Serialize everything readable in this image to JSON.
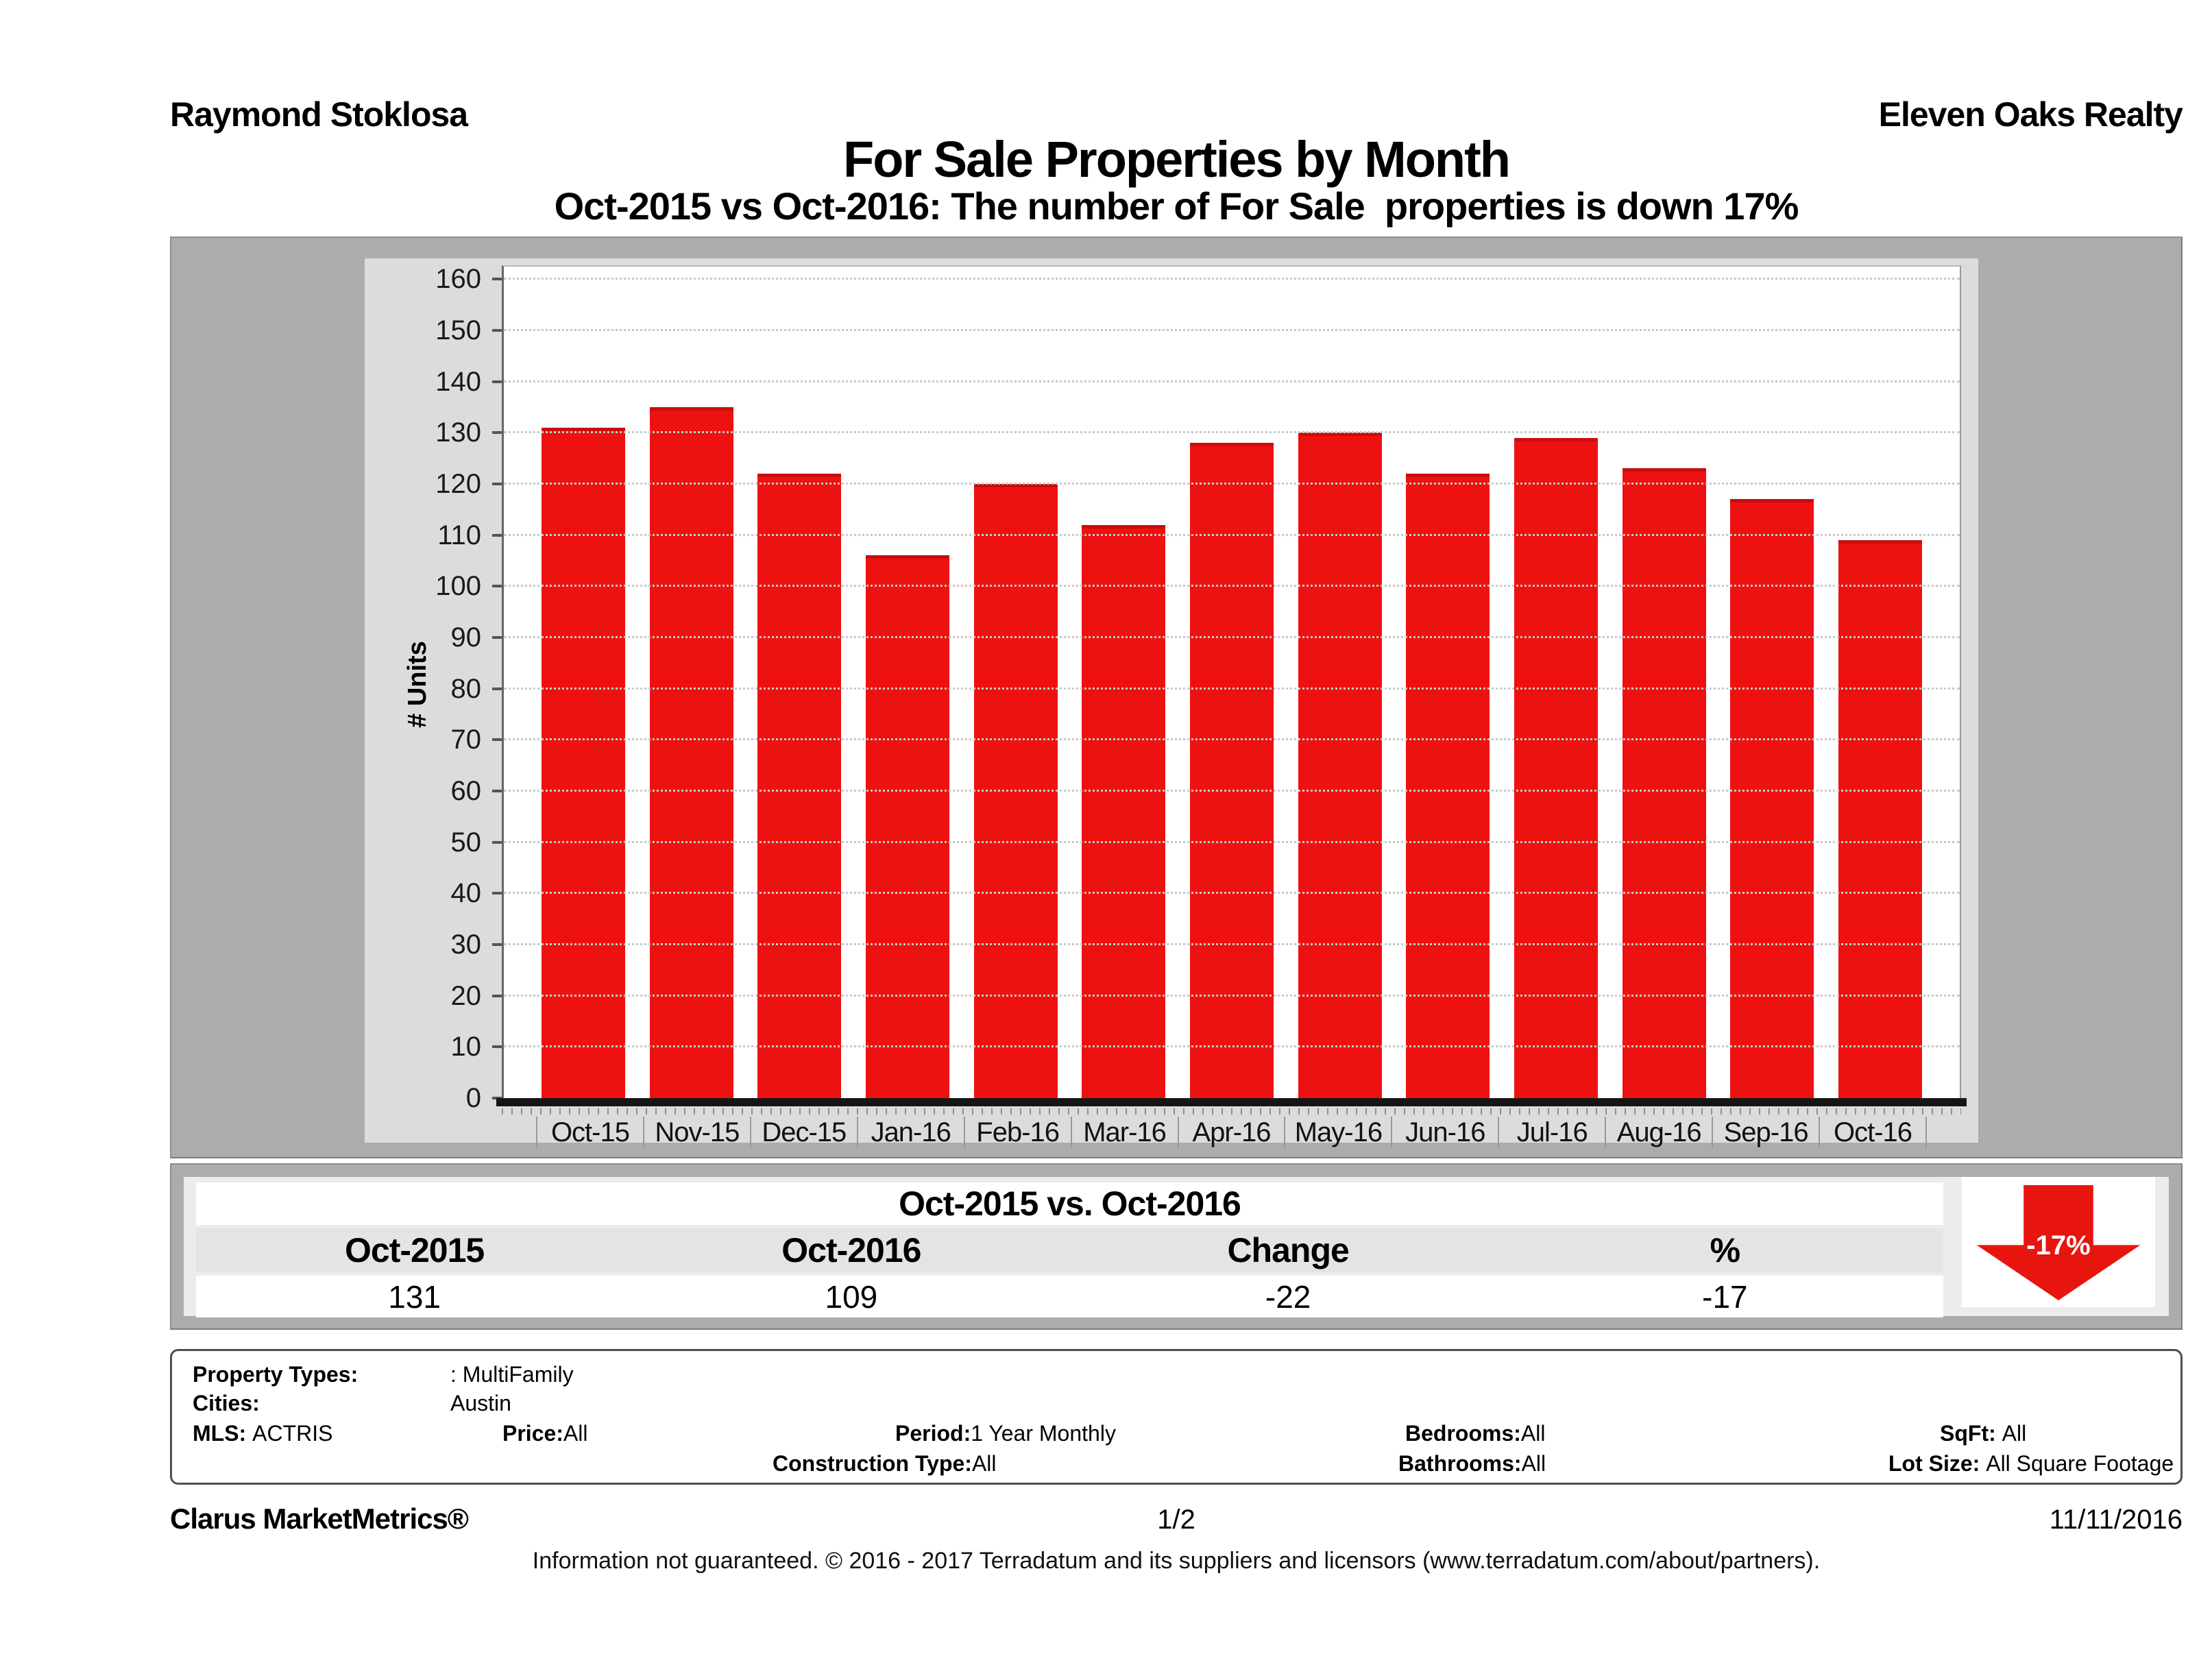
{
  "header": {
    "agent": "Raymond Stoklosa",
    "company": "Eleven Oaks Realty"
  },
  "title": "For Sale Properties by Month",
  "subtitle": "Oct-2015 vs Oct-2016: The number of For Sale  properties is down 17%",
  "chart_data": {
    "type": "bar",
    "title": "For Sale Properties by Month",
    "categories": [
      "Oct-15",
      "Nov-15",
      "Dec-15",
      "Jan-16",
      "Feb-16",
      "Mar-16",
      "Apr-16",
      "May-16",
      "Jun-16",
      "Jul-16",
      "Aug-16",
      "Sep-16",
      "Oct-16"
    ],
    "values": [
      131,
      135,
      122,
      106,
      120,
      112,
      128,
      130,
      122,
      129,
      123,
      117,
      109
    ],
    "xlabel": "",
    "ylabel": "# Units",
    "ylim": [
      0,
      160
    ],
    "ytick_step": 10,
    "grid": true,
    "legend": "none",
    "bar_color": "#ee1111"
  },
  "comparison": {
    "title": "Oct-2015 vs. Oct-2016",
    "columns": [
      "Oct-2015",
      "Oct-2016",
      "Change",
      "%"
    ],
    "values": [
      "131",
      "109",
      "-22",
      "-17"
    ],
    "arrow_label": "-17%",
    "arrow_color": "#e8150f"
  },
  "filters": {
    "property_types_label": "Property Types:",
    "property_types_value": ": MultiFamily",
    "cities_label": "Cities:",
    "cities_value": "Austin",
    "mls_label": "MLS:",
    "mls_value": "ACTRIS",
    "price_label": "Price:",
    "price_value": "All",
    "period_label": "Period:",
    "period_value": "1 Year Monthly",
    "bedrooms_label": "Bedrooms:",
    "bedrooms_value": "All",
    "sqft_label": "SqFt:",
    "sqft_value": "All",
    "construction_label": "Construction Type:",
    "construction_value": "All",
    "bathrooms_label": "Bathrooms:",
    "bathrooms_value": "All",
    "lot_label": "Lot Size:",
    "lot_value": "All Square Footage"
  },
  "footer": {
    "brand": "Clarus MarketMetrics®",
    "page": "1/2",
    "date": "11/11/2016",
    "disclaimer": "Information not guaranteed. © 2016 - 2017 Terradatum and its suppliers and licensors (www.terradatum.com/about/partners)."
  }
}
